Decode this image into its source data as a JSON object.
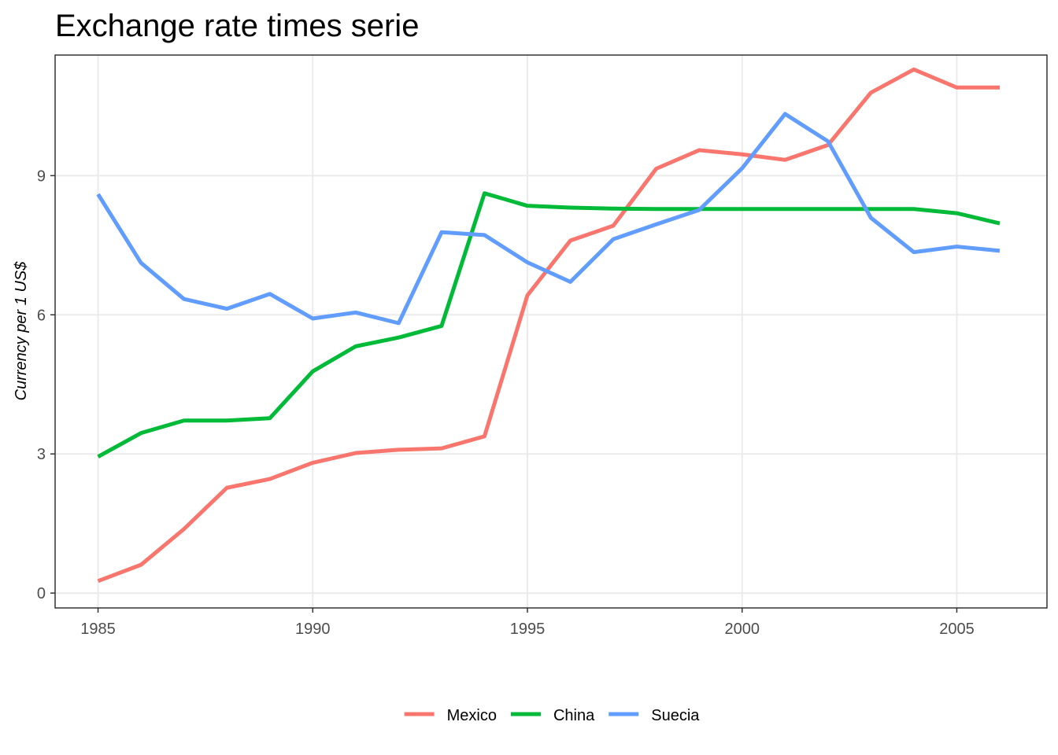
{
  "chart_data": {
    "type": "line",
    "title": "Exchange rate times serie",
    "xlabel": "",
    "ylabel": "Currency per 1 US$",
    "x": [
      1985,
      1986,
      1987,
      1988,
      1989,
      1990,
      1991,
      1992,
      1993,
      1994,
      1995,
      1996,
      1997,
      1998,
      1999,
      2000,
      2001,
      2002,
      2003,
      2004,
      2005,
      2006
    ],
    "xlim": [
      1984,
      2007.1
    ],
    "ylim": [
      -0.32,
      11.6
    ],
    "xticks": [
      1985,
      1990,
      1995,
      2000,
      2005
    ],
    "yticks": [
      0,
      3,
      6,
      9
    ],
    "xtick_labels": [
      "1985",
      "1990",
      "1995",
      "2000",
      "2005"
    ],
    "ytick_labels": [
      "0",
      "3",
      "6",
      "9"
    ],
    "grid": true,
    "legend_position": "bottom",
    "series": [
      {
        "name": "Mexico",
        "color": "#F8766D",
        "values": [
          0.26,
          0.61,
          1.38,
          2.27,
          2.46,
          2.81,
          3.02,
          3.09,
          3.12,
          3.38,
          6.42,
          7.6,
          7.92,
          9.15,
          9.55,
          9.46,
          9.34,
          9.66,
          10.79,
          11.29,
          10.9,
          10.9
        ]
      },
      {
        "name": "China",
        "color": "#00BA38",
        "values": [
          2.94,
          3.45,
          3.72,
          3.72,
          3.77,
          4.78,
          5.32,
          5.51,
          5.76,
          8.62,
          8.35,
          8.31,
          8.29,
          8.28,
          8.28,
          8.28,
          8.28,
          8.28,
          8.28,
          8.28,
          8.19,
          7.97
        ]
      },
      {
        "name": "Suecia",
        "color": "#619CFF",
        "values": [
          8.6,
          7.12,
          6.34,
          6.13,
          6.45,
          5.92,
          6.05,
          5.82,
          7.78,
          7.72,
          7.13,
          6.71,
          7.63,
          7.95,
          8.26,
          9.16,
          10.33,
          9.74,
          8.09,
          7.35,
          7.47,
          7.38
        ]
      }
    ]
  }
}
